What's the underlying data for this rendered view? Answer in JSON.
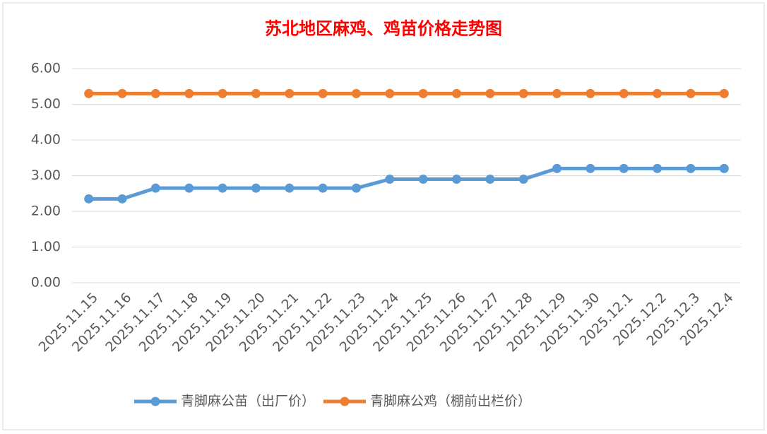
{
  "chart_data": {
    "type": "line",
    "title": "苏北地区麻鸡、鸡苗价格走势图",
    "categories": [
      "2025.11.15",
      "2025.11.16",
      "2025.11.17",
      "2025.11.18",
      "2025.11.19",
      "2025.11.20",
      "2025.11.21",
      "2025.11.22",
      "2025.11.23",
      "2025.11.24",
      "2025.11.25",
      "2025.11.26",
      "2025.11.27",
      "2025.11.28",
      "2025.11.29",
      "2025.11.30",
      "2025.12.1",
      "2025.12.2",
      "2025.12.3",
      "2025.12.4"
    ],
    "series": [
      {
        "name": "青脚麻公苗（出厂价）",
        "color": "#5b9bd5",
        "values": [
          2.35,
          2.35,
          2.65,
          2.65,
          2.65,
          2.65,
          2.65,
          2.65,
          2.65,
          2.9,
          2.9,
          2.9,
          2.9,
          2.9,
          3.2,
          3.2,
          3.2,
          3.2,
          3.2,
          3.2
        ]
      },
      {
        "name": "青脚麻公鸡（棚前出栏价）",
        "color": "#ed7d31",
        "values": [
          5.3,
          5.3,
          5.3,
          5.3,
          5.3,
          5.3,
          5.3,
          5.3,
          5.3,
          5.3,
          5.3,
          5.3,
          5.3,
          5.3,
          5.3,
          5.3,
          5.3,
          5.3,
          5.3,
          5.3
        ]
      }
    ],
    "ylim": [
      0,
      6
    ],
    "yticks": [
      {
        "value": 0,
        "label": "0.00"
      },
      {
        "value": 1,
        "label": "1.00"
      },
      {
        "value": 2,
        "label": "2.00"
      },
      {
        "value": 3,
        "label": "3.00"
      },
      {
        "value": 4,
        "label": "4.00"
      },
      {
        "value": 5,
        "label": "5.00"
      },
      {
        "value": 6,
        "label": "6.00"
      }
    ],
    "grid": true,
    "legend": "bottom"
  }
}
